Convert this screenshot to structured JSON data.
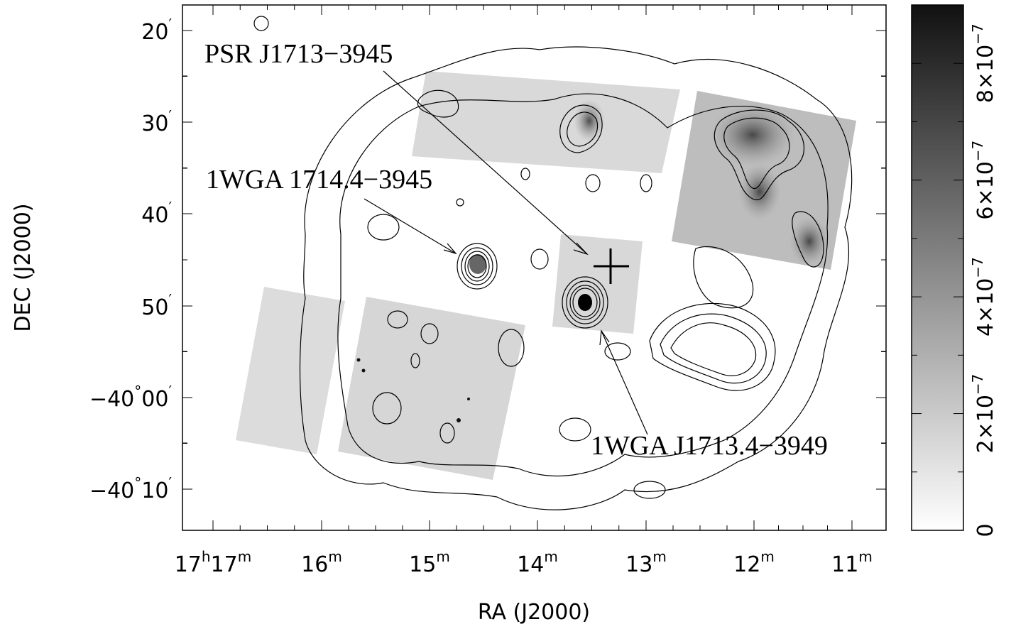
{
  "axes": {
    "xlabel": "RA (J2000)",
    "ylabel": "DEC (J2000)",
    "ra_ticks": [
      {
        "h": "17",
        "m": "17"
      },
      {
        "h": "",
        "m": "16"
      },
      {
        "h": "",
        "m": "15"
      },
      {
        "h": "",
        "m": "14"
      },
      {
        "h": "",
        "m": "13"
      },
      {
        "h": "",
        "m": "12"
      },
      {
        "h": "",
        "m": "11"
      }
    ],
    "dec_ticks": [
      {
        "deg": "",
        "min": "20"
      },
      {
        "deg": "",
        "min": "30"
      },
      {
        "deg": "",
        "min": "40"
      },
      {
        "deg": "",
        "min": "50"
      },
      {
        "deg": "−40",
        "min": "00"
      },
      {
        "deg": "−40",
        "min": "10"
      }
    ]
  },
  "colorbar": {
    "ticks": [
      {
        "mant": "0",
        "exp": ""
      },
      {
        "mant": "2×10",
        "exp": "−7"
      },
      {
        "mant": "4×10",
        "exp": "−7"
      },
      {
        "mant": "6×10",
        "exp": "−7"
      },
      {
        "mant": "8×10",
        "exp": "−7"
      }
    ],
    "gradient_top": "#111111",
    "gradient_bottom": "#ffffff"
  },
  "annotations": {
    "psr": "PSR J1713−3945",
    "src1": "1WGA 1714.4−3945",
    "src2": "1WGA J1713.4−3949"
  }
}
